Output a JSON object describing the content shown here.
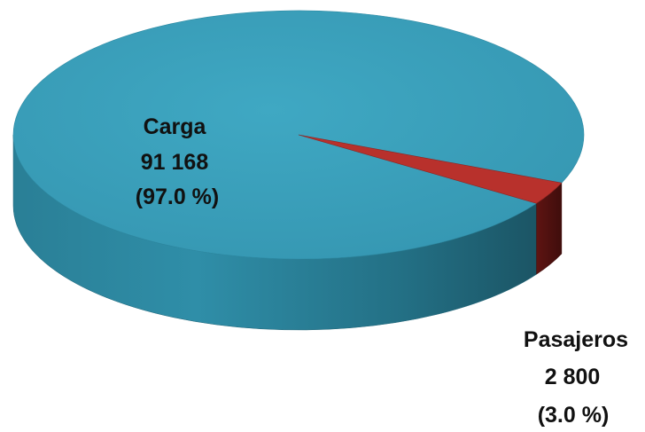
{
  "chart_data": {
    "type": "pie",
    "style": "3d",
    "legend": "none",
    "slices": [
      {
        "label": "Carga",
        "value_text": "91 168",
        "value": 91168,
        "percent_text": "(97.0 %)",
        "percent": 97.0,
        "color": "#3ba2bd"
      },
      {
        "label": "Pasajeros",
        "value_text": "2 800",
        "value": 2800,
        "percent_text": "(3.0 %)",
        "percent": 3.0,
        "color": "#b8312c"
      }
    ]
  }
}
